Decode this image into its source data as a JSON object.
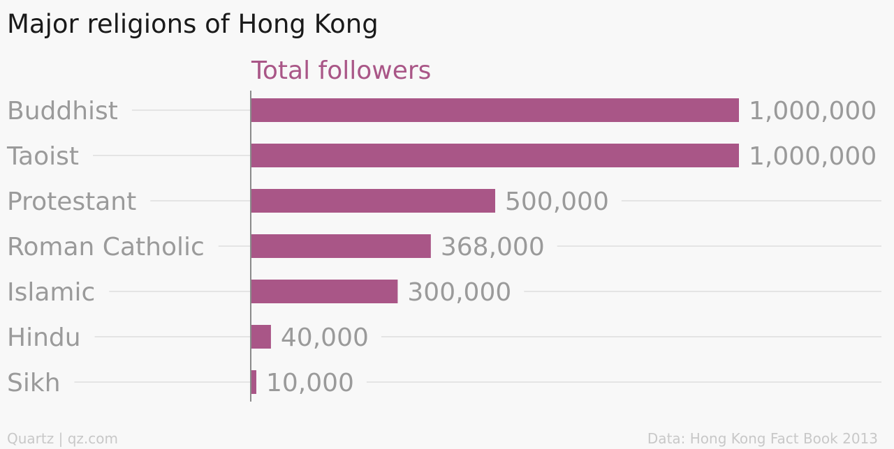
{
  "title": "Major religions of Hong Kong",
  "footer": {
    "left": "Quartz | qz.com",
    "right": "Data: Hong Kong Fact Book 2013"
  },
  "colors": {
    "bar": "#a95687",
    "series_label": "#a95687",
    "category_label": "#9a9a9a",
    "value_label": "#9a9a9a",
    "gridline": "#e4e4e4",
    "axis": "#8a8a8a"
  },
  "chart_data": {
    "type": "bar",
    "orientation": "horizontal",
    "title": "Major religions of Hong Kong",
    "series_header": "Total followers",
    "categories": [
      "Buddhist",
      "Taoist",
      "Protestant",
      "Roman Catholic",
      "Islamic",
      "Hindu",
      "Sikh"
    ],
    "series": [
      {
        "name": "Total followers",
        "values": [
          1000000,
          1000000,
          500000,
          368000,
          300000,
          40000,
          10000
        ],
        "labels": [
          "1,000,000",
          "1,000,000",
          "500,000",
          "368,000",
          "300,000",
          "40,000",
          "10,000"
        ]
      }
    ],
    "xlim": [
      0,
      1000000
    ],
    "grid": true
  }
}
